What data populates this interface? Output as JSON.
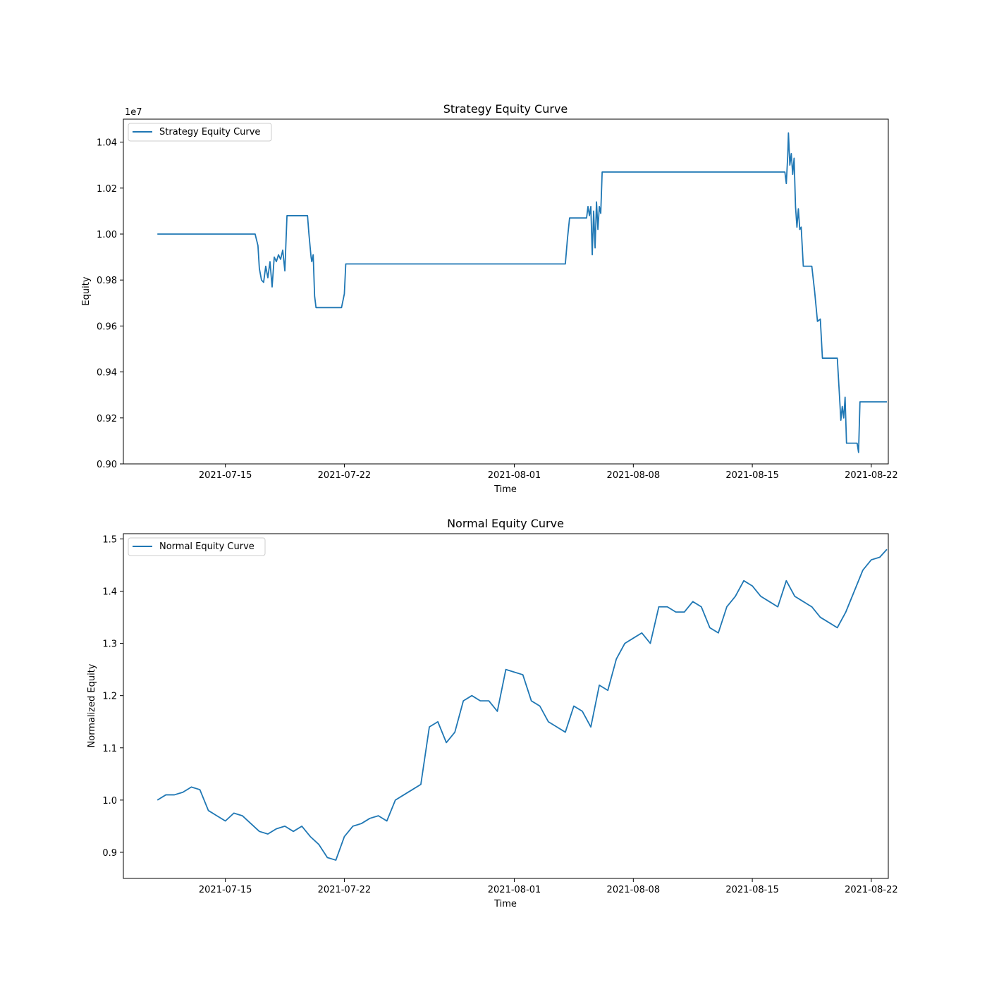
{
  "chart_data": [
    {
      "type": "line",
      "title": "Strategy Equity Curve",
      "xlabel": "Time",
      "ylabel": "Equity",
      "y_offset_label": "1e7",
      "y_scale_factor": 10000000,
      "xlim": [
        "2021-07-09",
        "2021-08-23"
      ],
      "ylim": [
        0.9,
        1.05
      ],
      "x_ticks": [
        "2021-07-15",
        "2021-07-22",
        "2021-08-01",
        "2021-08-08",
        "2021-08-15",
        "2021-08-22"
      ],
      "y_ticks": [
        "0.90",
        "0.92",
        "0.94",
        "0.96",
        "0.98",
        "1.00",
        "1.02",
        "1.04"
      ],
      "grid": false,
      "legend_position": "top-left",
      "series": [
        {
          "name": "Strategy Equity Curve",
          "color": "#1f77b4",
          "points": [
            [
              "2021-07-11 00:00",
              1.0
            ],
            [
              "2021-07-16 18:00",
              1.0
            ],
            [
              "2021-07-16 22:00",
              0.995
            ],
            [
              "2021-07-17 00:00",
              0.985
            ],
            [
              "2021-07-17 03:00",
              0.98
            ],
            [
              "2021-07-17 06:00",
              0.979
            ],
            [
              "2021-07-17 09:00",
              0.986
            ],
            [
              "2021-07-17 12:00",
              0.981
            ],
            [
              "2021-07-17 15:00",
              0.988
            ],
            [
              "2021-07-17 18:00",
              0.977
            ],
            [
              "2021-07-17 21:00",
              0.99
            ],
            [
              "2021-07-18 00:00",
              0.988
            ],
            [
              "2021-07-18 03:00",
              0.991
            ],
            [
              "2021-07-18 06:00",
              0.989
            ],
            [
              "2021-07-18 09:00",
              0.993
            ],
            [
              "2021-07-18 12:00",
              0.984
            ],
            [
              "2021-07-18 15:00",
              1.008
            ],
            [
              "2021-07-19 20:00",
              1.008
            ],
            [
              "2021-07-19 22:00",
              1.0
            ],
            [
              "2021-07-20 01:00",
              0.99
            ],
            [
              "2021-07-20 02:00",
              0.988
            ],
            [
              "2021-07-20 04:00",
              0.991
            ],
            [
              "2021-07-20 06:00",
              0.973
            ],
            [
              "2021-07-20 08:00",
              0.968
            ],
            [
              "2021-07-21 20:00",
              0.968
            ],
            [
              "2021-07-21 22:00",
              0.971
            ],
            [
              "2021-07-22 00:00",
              0.974
            ],
            [
              "2021-07-22 02:00",
              0.987
            ],
            [
              "2021-08-04 00:00",
              0.987
            ],
            [
              "2021-08-04 03:00",
              0.998
            ],
            [
              "2021-08-04 06:00",
              1.007
            ],
            [
              "2021-08-05 06:00",
              1.007
            ],
            [
              "2021-08-05 08:00",
              1.012
            ],
            [
              "2021-08-05 10:00",
              1.008
            ],
            [
              "2021-08-05 12:00",
              1.012
            ],
            [
              "2021-08-05 14:00",
              0.991
            ],
            [
              "2021-08-05 16:00",
              1.01
            ],
            [
              "2021-08-05 18:00",
              0.994
            ],
            [
              "2021-08-05 20:00",
              1.014
            ],
            [
              "2021-08-05 22:00",
              1.002
            ],
            [
              "2021-08-06 00:00",
              1.012
            ],
            [
              "2021-08-06 02:00",
              1.009
            ],
            [
              "2021-08-06 04:00",
              1.027
            ],
            [
              "2021-08-16 22:00",
              1.027
            ],
            [
              "2021-08-17 00:00",
              1.022
            ],
            [
              "2021-08-17 02:00",
              1.034
            ],
            [
              "2021-08-17 03:00",
              1.044
            ],
            [
              "2021-08-17 05:00",
              1.03
            ],
            [
              "2021-08-17 07:00",
              1.035
            ],
            [
              "2021-08-17 09:00",
              1.026
            ],
            [
              "2021-08-17 11:00",
              1.033
            ],
            [
              "2021-08-17 13:00",
              1.012
            ],
            [
              "2021-08-17 15:00",
              1.003
            ],
            [
              "2021-08-17 17:00",
              1.011
            ],
            [
              "2021-08-17 19:00",
              1.002
            ],
            [
              "2021-08-17 21:00",
              1.003
            ],
            [
              "2021-08-18 00:00",
              0.986
            ],
            [
              "2021-08-18 12:00",
              0.986
            ],
            [
              "2021-08-18 16:00",
              0.975
            ],
            [
              "2021-08-18 20:00",
              0.962
            ],
            [
              "2021-08-19 00:00",
              0.963
            ],
            [
              "2021-08-19 03:00",
              0.946
            ],
            [
              "2021-08-20 00:00",
              0.946
            ],
            [
              "2021-08-20 03:00",
              0.93
            ],
            [
              "2021-08-20 05:00",
              0.919
            ],
            [
              "2021-08-20 07:00",
              0.925
            ],
            [
              "2021-08-20 09:00",
              0.92
            ],
            [
              "2021-08-20 11:00",
              0.929
            ],
            [
              "2021-08-20 13:00",
              0.909
            ],
            [
              "2021-08-21 04:00",
              0.909
            ],
            [
              "2021-08-21 06:00",
              0.905
            ],
            [
              "2021-08-21 08:00",
              0.927
            ],
            [
              "2021-08-22 22:00",
              0.927
            ]
          ]
        }
      ]
    },
    {
      "type": "line",
      "title": "Normal Equity Curve",
      "xlabel": "Time",
      "ylabel": "Normalized Equity",
      "xlim": [
        "2021-07-09",
        "2021-08-23"
      ],
      "ylim": [
        0.85,
        1.51
      ],
      "x_ticks": [
        "2021-07-15",
        "2021-07-22",
        "2021-08-01",
        "2021-08-08",
        "2021-08-15",
        "2021-08-22"
      ],
      "y_ticks": [
        "0.9",
        "1.0",
        "1.1",
        "1.2",
        "1.3",
        "1.4",
        "1.5"
      ],
      "grid": false,
      "legend_position": "top-left",
      "series": [
        {
          "name": "Normal Equity Curve",
          "color": "#1f77b4",
          "points": [
            [
              "2021-07-11 00:00",
              1.0
            ],
            [
              "2021-07-11 12:00",
              1.01
            ],
            [
              "2021-07-12 00:00",
              1.01
            ],
            [
              "2021-07-12 12:00",
              1.015
            ],
            [
              "2021-07-13 00:00",
              1.025
            ],
            [
              "2021-07-13 12:00",
              1.02
            ],
            [
              "2021-07-14 00:00",
              0.98
            ],
            [
              "2021-07-14 12:00",
              0.97
            ],
            [
              "2021-07-15 00:00",
              0.96
            ],
            [
              "2021-07-15 12:00",
              0.975
            ],
            [
              "2021-07-16 00:00",
              0.97
            ],
            [
              "2021-07-16 12:00",
              0.955
            ],
            [
              "2021-07-17 00:00",
              0.94
            ],
            [
              "2021-07-17 12:00",
              0.935
            ],
            [
              "2021-07-18 00:00",
              0.945
            ],
            [
              "2021-07-18 12:00",
              0.95
            ],
            [
              "2021-07-19 00:00",
              0.94
            ],
            [
              "2021-07-19 12:00",
              0.95
            ],
            [
              "2021-07-20 00:00",
              0.93
            ],
            [
              "2021-07-20 12:00",
              0.915
            ],
            [
              "2021-07-21 00:00",
              0.89
            ],
            [
              "2021-07-21 12:00",
              0.885
            ],
            [
              "2021-07-22 00:00",
              0.93
            ],
            [
              "2021-07-22 12:00",
              0.95
            ],
            [
              "2021-07-23 00:00",
              0.955
            ],
            [
              "2021-07-23 12:00",
              0.965
            ],
            [
              "2021-07-24 00:00",
              0.97
            ],
            [
              "2021-07-24 12:00",
              0.96
            ],
            [
              "2021-07-25 00:00",
              1.0
            ],
            [
              "2021-07-25 12:00",
              1.01
            ],
            [
              "2021-07-26 00:00",
              1.02
            ],
            [
              "2021-07-26 12:00",
              1.03
            ],
            [
              "2021-07-27 00:00",
              1.14
            ],
            [
              "2021-07-27 12:00",
              1.15
            ],
            [
              "2021-07-28 00:00",
              1.11
            ],
            [
              "2021-07-28 12:00",
              1.13
            ],
            [
              "2021-07-29 00:00",
              1.19
            ],
            [
              "2021-07-29 12:00",
              1.2
            ],
            [
              "2021-07-30 00:00",
              1.19
            ],
            [
              "2021-07-30 12:00",
              1.19
            ],
            [
              "2021-07-31 00:00",
              1.17
            ],
            [
              "2021-07-31 12:00",
              1.25
            ],
            [
              "2021-08-01 00:00",
              1.245
            ],
            [
              "2021-08-01 12:00",
              1.24
            ],
            [
              "2021-08-02 00:00",
              1.19
            ],
            [
              "2021-08-02 12:00",
              1.18
            ],
            [
              "2021-08-03 00:00",
              1.15
            ],
            [
              "2021-08-03 12:00",
              1.14
            ],
            [
              "2021-08-04 00:00",
              1.13
            ],
            [
              "2021-08-04 12:00",
              1.18
            ],
            [
              "2021-08-05 00:00",
              1.17
            ],
            [
              "2021-08-05 12:00",
              1.14
            ],
            [
              "2021-08-06 00:00",
              1.22
            ],
            [
              "2021-08-06 12:00",
              1.21
            ],
            [
              "2021-08-07 00:00",
              1.27
            ],
            [
              "2021-08-07 12:00",
              1.3
            ],
            [
              "2021-08-08 00:00",
              1.31
            ],
            [
              "2021-08-08 12:00",
              1.32
            ],
            [
              "2021-08-09 00:00",
              1.3
            ],
            [
              "2021-08-09 12:00",
              1.37
            ],
            [
              "2021-08-10 00:00",
              1.37
            ],
            [
              "2021-08-10 12:00",
              1.36
            ],
            [
              "2021-08-11 00:00",
              1.36
            ],
            [
              "2021-08-11 12:00",
              1.38
            ],
            [
              "2021-08-12 00:00",
              1.37
            ],
            [
              "2021-08-12 12:00",
              1.33
            ],
            [
              "2021-08-13 00:00",
              1.32
            ],
            [
              "2021-08-13 12:00",
              1.37
            ],
            [
              "2021-08-14 00:00",
              1.39
            ],
            [
              "2021-08-14 12:00",
              1.42
            ],
            [
              "2021-08-15 00:00",
              1.41
            ],
            [
              "2021-08-15 12:00",
              1.39
            ],
            [
              "2021-08-16 00:00",
              1.38
            ],
            [
              "2021-08-16 12:00",
              1.37
            ],
            [
              "2021-08-17 00:00",
              1.42
            ],
            [
              "2021-08-17 12:00",
              1.39
            ],
            [
              "2021-08-18 00:00",
              1.38
            ],
            [
              "2021-08-18 12:00",
              1.37
            ],
            [
              "2021-08-19 00:00",
              1.35
            ],
            [
              "2021-08-19 12:00",
              1.34
            ],
            [
              "2021-08-20 00:00",
              1.33
            ],
            [
              "2021-08-20 12:00",
              1.36
            ],
            [
              "2021-08-21 00:00",
              1.4
            ],
            [
              "2021-08-21 12:00",
              1.44
            ],
            [
              "2021-08-22 00:00",
              1.46
            ],
            [
              "2021-08-22 12:00",
              1.465
            ],
            [
              "2021-08-22 22:00",
              1.48
            ]
          ]
        }
      ]
    }
  ]
}
